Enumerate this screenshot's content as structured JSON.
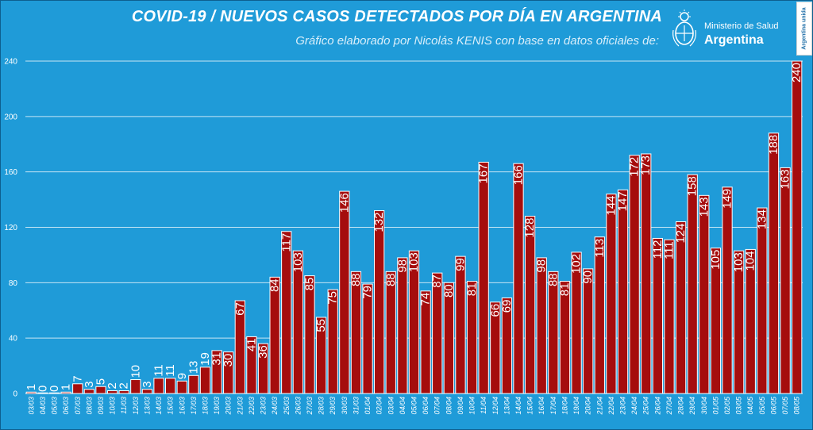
{
  "header": {
    "title": "COVID-19  /  NUEVOS CASOS DETECTADOS POR DÍA EN ARGENTINA",
    "subtitle": "Gráfico elaborado por Nicolás KENIS con base en datos oficiales de:"
  },
  "logo": {
    "line1": "Ministerio de Salud",
    "line2": "Argentina",
    "badge": "Argentina unida"
  },
  "colors": {
    "background": "#1f9bd8",
    "bar": "#a50d0d",
    "text": "#ffffff"
  },
  "chart_data": {
    "type": "bar",
    "title": "COVID-19  /  NUEVOS CASOS DETECTADOS POR DÍA EN ARGENTINA",
    "xlabel": "",
    "ylabel": "",
    "ylim": [
      0,
      240
    ],
    "yticks": [
      0,
      40,
      80,
      120,
      160,
      200,
      240
    ],
    "grid": true,
    "categories": [
      "03/03",
      "04/03",
      "05/03",
      "06/03",
      "07/03",
      "08/03",
      "09/03",
      "10/03",
      "11/03",
      "12/03",
      "13/03",
      "14/03",
      "15/03",
      "16/03",
      "17/03",
      "18/03",
      "19/03",
      "20/03",
      "21/03",
      "22/03",
      "23/03",
      "24/03",
      "25/03",
      "26/03",
      "27/03",
      "28/03",
      "29/03",
      "30/03",
      "31/03",
      "01/04",
      "02/04",
      "03/04",
      "04/04",
      "05/04",
      "06/04",
      "07/04",
      "08/04",
      "09/04",
      "10/04",
      "11/04",
      "12/04",
      "13/04",
      "14/04",
      "15/04",
      "16/04",
      "17/04",
      "18/04",
      "19/04",
      "20/04",
      "21/04",
      "22/04",
      "23/04",
      "24/04",
      "25/04",
      "26/04",
      "27/04",
      "28/04",
      "29/04",
      "30/04",
      "01/05",
      "02/05",
      "03/05",
      "04/05",
      "05/05",
      "06/05",
      "07/05",
      "08/05"
    ],
    "values": [
      1,
      0,
      0,
      1,
      7,
      3,
      5,
      2,
      2,
      10,
      3,
      11,
      11,
      9,
      13,
      19,
      31,
      30,
      67,
      41,
      36,
      84,
      117,
      103,
      85,
      55,
      75,
      146,
      88,
      79,
      132,
      88,
      98,
      103,
      74,
      87,
      80,
      99,
      81,
      167,
      66,
      69,
      166,
      128,
      98,
      88,
      81,
      102,
      90,
      113,
      144,
      147,
      172,
      173,
      112,
      111,
      124,
      158,
      143,
      105,
      149,
      103,
      104,
      134,
      188,
      163,
      240
    ]
  }
}
